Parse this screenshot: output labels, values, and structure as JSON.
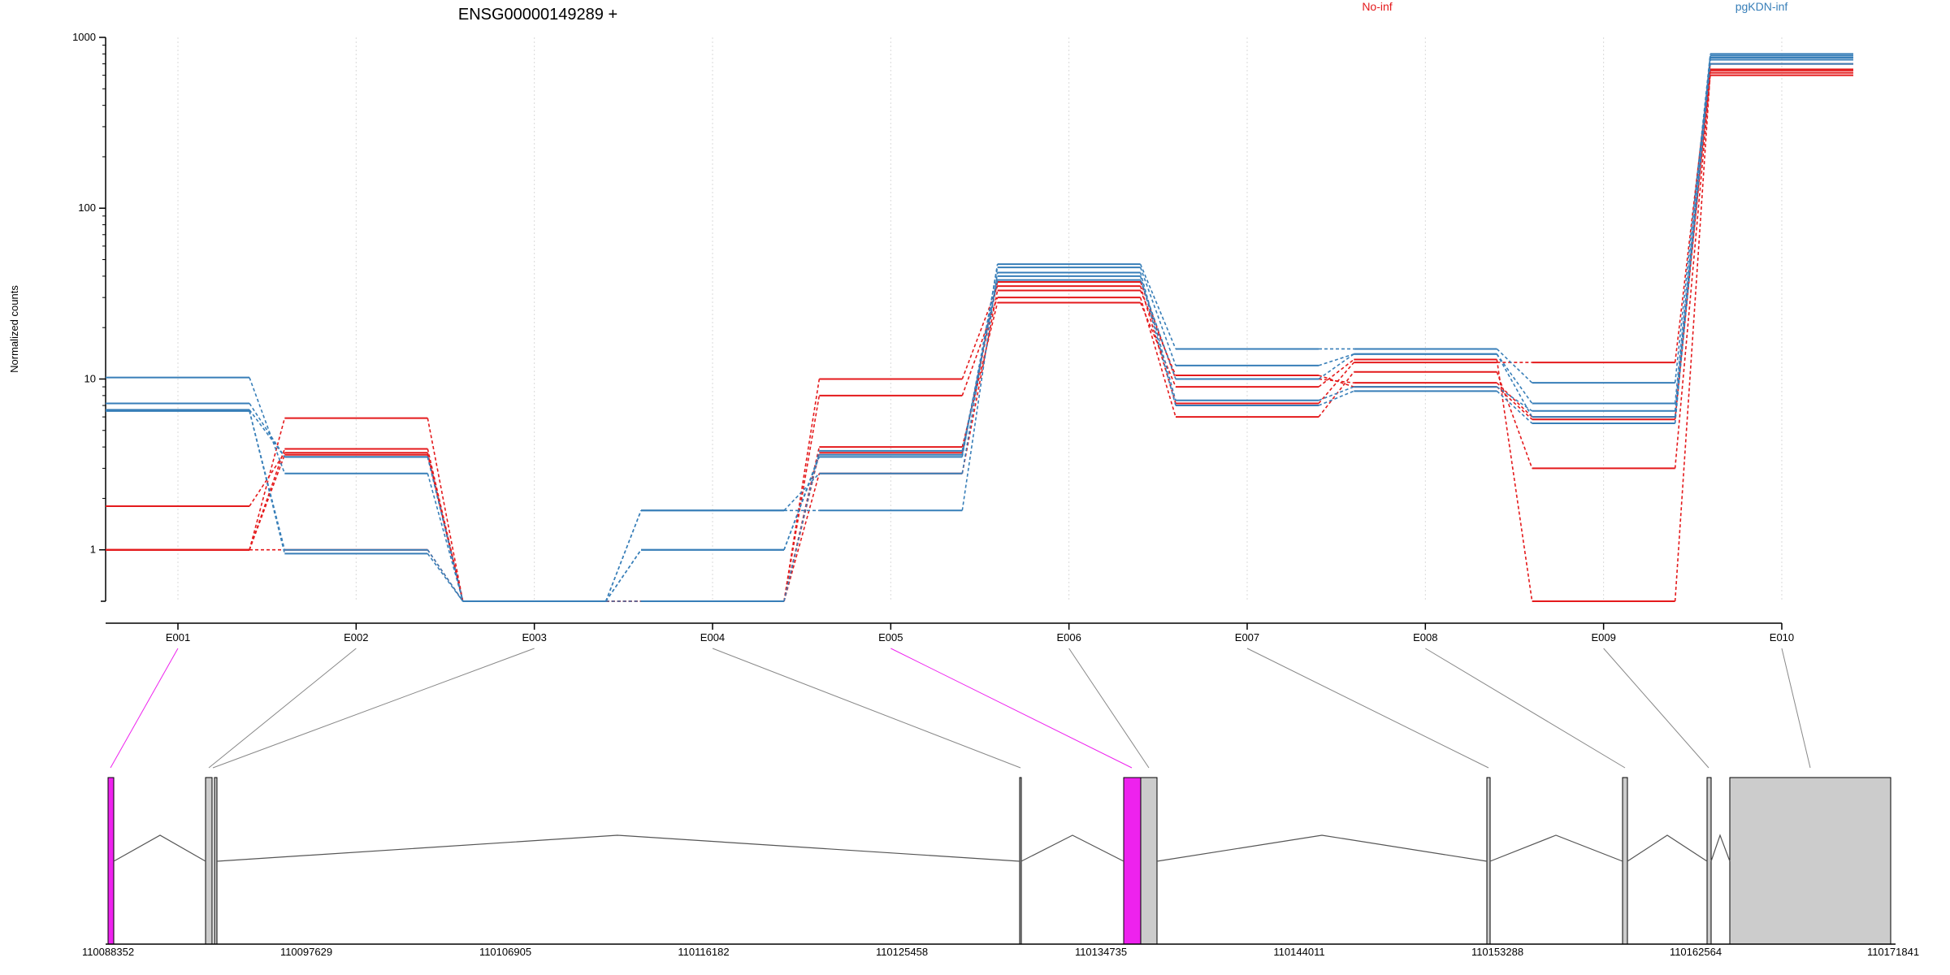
{
  "chart_data": {
    "type": "line",
    "title": "ENSG00000149289 +",
    "ylabel": "Normalized counts",
    "yscale": "log",
    "ylim": [
      0.5,
      1000
    ],
    "yticks": [
      {
        "value": 1,
        "label": "1"
      },
      {
        "value": 10,
        "label": "10"
      },
      {
        "value": 100,
        "label": "100"
      },
      {
        "value": 1000,
        "label": "1000"
      }
    ],
    "categories": [
      "E001",
      "E002",
      "E003",
      "E004",
      "E005",
      "E006",
      "E007",
      "E008",
      "E009",
      "E010"
    ],
    "grid": true,
    "legend": [
      {
        "name": "No-inf",
        "color": "#e41a1c"
      },
      {
        "name": "pgKDN-inf",
        "color": "#377eb8"
      }
    ],
    "series": [
      {
        "group": "No-inf",
        "color": "#e41a1c",
        "values": [
          1.8,
          3.7,
          0.5,
          0.5,
          10,
          35,
          7.2,
          12.5,
          12.5,
          700
        ]
      },
      {
        "group": "No-inf",
        "color": "#e41a1c",
        "values": [
          1.0,
          5.9,
          0.5,
          0.5,
          8,
          30,
          6.0,
          11,
          3.0,
          600
        ]
      },
      {
        "group": "No-inf",
        "color": "#e41a1c",
        "values": [
          1.0,
          3.6,
          0.5,
          0.5,
          4.0,
          28,
          9.0,
          13,
          0.5,
          620
        ]
      },
      {
        "group": "No-inf",
        "color": "#e41a1c",
        "values": [
          1.0,
          1.0,
          0.5,
          0.5,
          3.7,
          37,
          10,
          9.5,
          6.0,
          650
        ]
      },
      {
        "group": "No-inf",
        "color": "#e41a1c",
        "values": [
          1.0,
          3.9,
          0.5,
          0.5,
          2.8,
          33,
          10.5,
          9.0,
          5.8,
          640
        ]
      },
      {
        "group": "pgKDN-inf",
        "color": "#377eb8",
        "values": [
          10.2,
          2.8,
          0.5,
          1.7,
          2.8,
          47,
          15,
          15,
          9.5,
          800
        ]
      },
      {
        "group": "pgKDN-inf",
        "color": "#377eb8",
        "values": [
          7.2,
          3.5,
          0.5,
          1.0,
          3.5,
          45,
          12,
          14,
          7.2,
          780
        ]
      },
      {
        "group": "pgKDN-inf",
        "color": "#377eb8",
        "values": [
          6.5,
          1.0,
          0.5,
          1.7,
          1.7,
          42,
          7.5,
          9,
          6.5,
          760
        ]
      },
      {
        "group": "pgKDN-inf",
        "color": "#377eb8",
        "values": [
          6.5,
          0.95,
          0.5,
          1.0,
          3.6,
          40,
          7.0,
          8.5,
          5.5,
          740
        ]
      },
      {
        "group": "pgKDN-inf",
        "color": "#377eb8",
        "values": [
          6.6,
          3.5,
          0.5,
          0.5,
          3.8,
          38,
          10,
          14,
          6.0,
          700
        ]
      }
    ],
    "gene_model": {
      "coordinate_labels": [
        "110088352",
        "110097629",
        "110106905",
        "110116182",
        "110125458",
        "110134735",
        "110144011",
        "110153288",
        "110162564",
        "110171841"
      ],
      "highlight_color": "#ee22ee",
      "exon_color": "#cccccc",
      "highlighted_exons": [
        "E001",
        "E005"
      ]
    }
  }
}
